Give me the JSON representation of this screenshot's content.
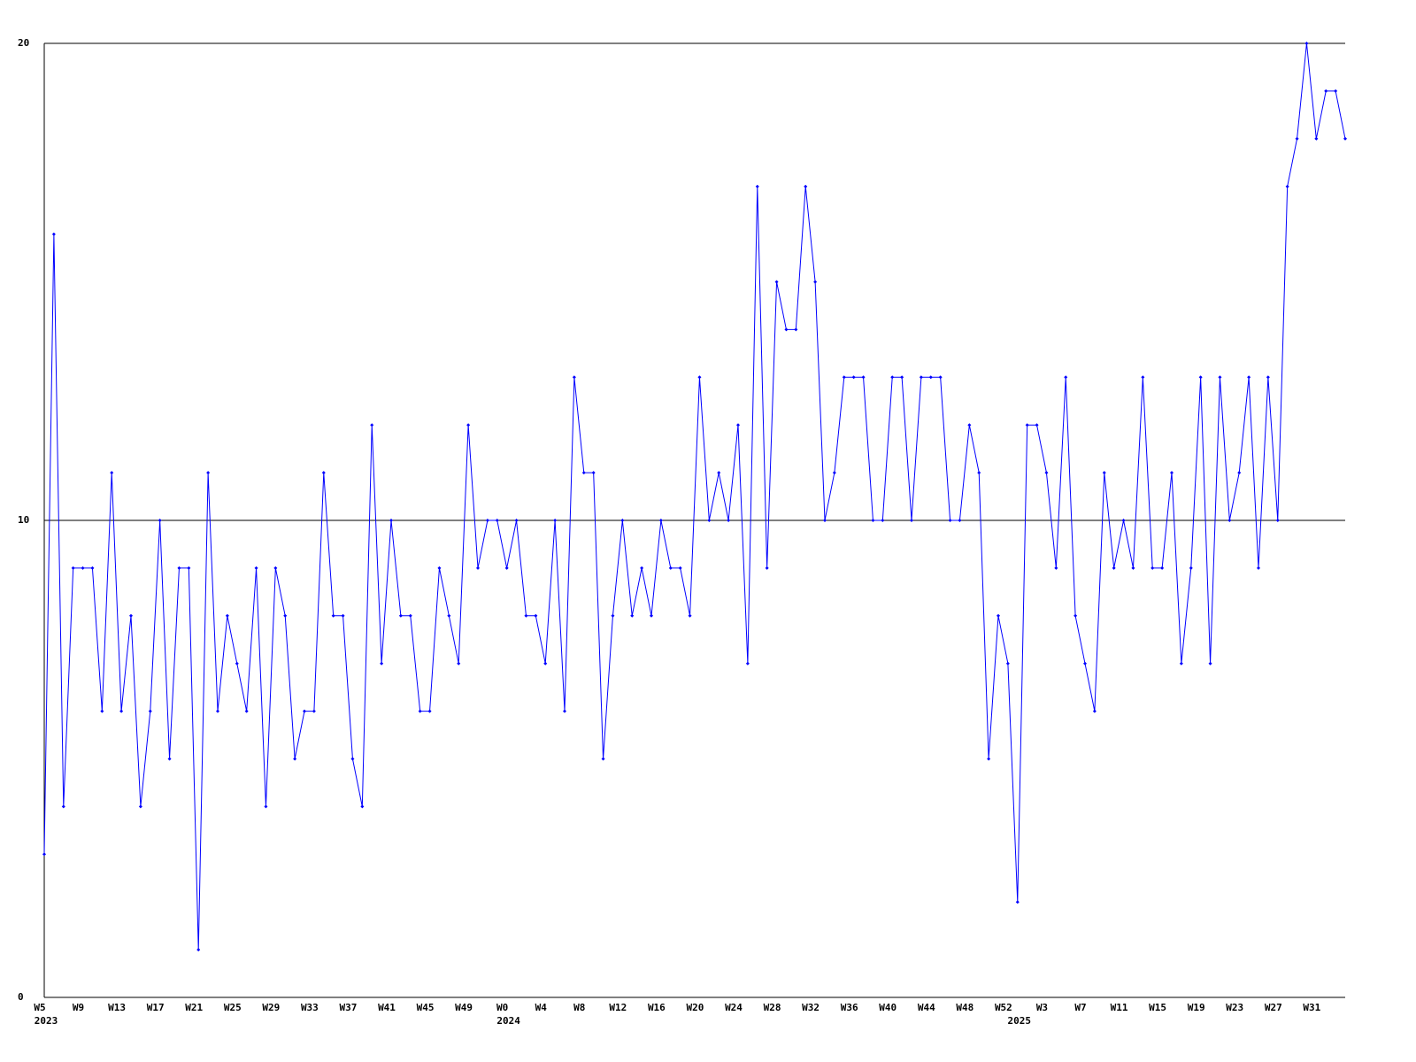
{
  "chart_data": {
    "type": "line",
    "categories": [
      "W5",
      null,
      null,
      null,
      "W9",
      null,
      null,
      null,
      "W13",
      null,
      null,
      null,
      "W17",
      null,
      null,
      null,
      "W21",
      null,
      null,
      null,
      "W25",
      null,
      null,
      null,
      "W29",
      null,
      null,
      null,
      "W33",
      null,
      null,
      null,
      "W37",
      null,
      null,
      null,
      "W41",
      null,
      null,
      null,
      "W45",
      null,
      null,
      null,
      "W49",
      null,
      null,
      null,
      "W0",
      null,
      null,
      null,
      "W4",
      null,
      null,
      null,
      "W8",
      null,
      null,
      null,
      "W12",
      null,
      null,
      null,
      "W16",
      null,
      null,
      null,
      "W20",
      null,
      null,
      null,
      "W24",
      null,
      null,
      null,
      "W28",
      null,
      null,
      null,
      "W32",
      null,
      null,
      null,
      "W36",
      null,
      null,
      null,
      "W40",
      null,
      null,
      null,
      "W44",
      null,
      null,
      null,
      "W48",
      null,
      null,
      null,
      "W52",
      null,
      null,
      null,
      "W3",
      null,
      null,
      null,
      "W7",
      null,
      null,
      null,
      "W11",
      null,
      null,
      null,
      "W15",
      null,
      null,
      null,
      "W19",
      null,
      null,
      null,
      "W23",
      null,
      null,
      null,
      "W27",
      null,
      null,
      null,
      "W31",
      null,
      null,
      null
    ],
    "category_groups": [
      "2023",
      null,
      null,
      null,
      null,
      null,
      null,
      null,
      null,
      null,
      null,
      null,
      null,
      null,
      null,
      null,
      null,
      null,
      null,
      null,
      null,
      null,
      null,
      null,
      null,
      null,
      null,
      null,
      null,
      null,
      null,
      null,
      null,
      null,
      null,
      null,
      null,
      null,
      null,
      null,
      null,
      null,
      null,
      null,
      null,
      null,
      null,
      null,
      "2024",
      null,
      null,
      null,
      null,
      null,
      null,
      null,
      null,
      null,
      null,
      null,
      null,
      null,
      null,
      null,
      null,
      null,
      null,
      null,
      null,
      null,
      null,
      null,
      null,
      null,
      null,
      null,
      null,
      null,
      null,
      null,
      null,
      null,
      null,
      null,
      null,
      null,
      null,
      null,
      null,
      null,
      null,
      null,
      null,
      null,
      null,
      null,
      null,
      null,
      null,
      null,
      null,
      "2025",
      null,
      null,
      null,
      null,
      null,
      null,
      null,
      null,
      null,
      null,
      null,
      null,
      null,
      null,
      null,
      null,
      null,
      null,
      null,
      null,
      null,
      null,
      null,
      null,
      null,
      null,
      null,
      null,
      null,
      null,
      null,
      null,
      null,
      null
    ],
    "series": [
      {
        "color": "#0000ff",
        "values": [
          3,
          16,
          4,
          9,
          9,
          9,
          6,
          11,
          6,
          8,
          4,
          6,
          10,
          5,
          9,
          9,
          1,
          11,
          6,
          8,
          7,
          6,
          9,
          4,
          9,
          8,
          5,
          6,
          6,
          11,
          8,
          8,
          5,
          4,
          12,
          7,
          10,
          8,
          8,
          6,
          6,
          9,
          8,
          7,
          12,
          9,
          10,
          10,
          9,
          10,
          8,
          8,
          7,
          10,
          6,
          13,
          11,
          11,
          5,
          8,
          10,
          8,
          9,
          8,
          10,
          9,
          9,
          8,
          13,
          10,
          11,
          10,
          12,
          7,
          17,
          9,
          15,
          14,
          14,
          17,
          15,
          10,
          11,
          13,
          13,
          13,
          10,
          10,
          13,
          13,
          10,
          13,
          13,
          13,
          10,
          10,
          12,
          11,
          5,
          8,
          7,
          2,
          12,
          12,
          11,
          9,
          13,
          8,
          7,
          6,
          11,
          9,
          10,
          9,
          13,
          9,
          9,
          11,
          7,
          9,
          13,
          7,
          13,
          10,
          11,
          13,
          9,
          13,
          10,
          17,
          18,
          20,
          18,
          19,
          19,
          18
        ]
      }
    ],
    "ylim": [
      0,
      20
    ],
    "yticks": [
      0,
      10,
      20
    ],
    "grid": true
  }
}
